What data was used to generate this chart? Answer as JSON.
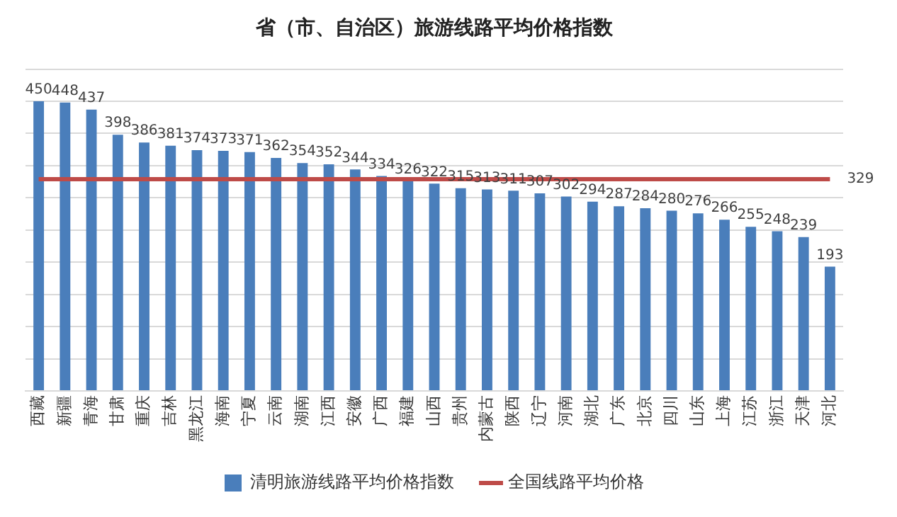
{
  "chart_data": {
    "type": "bar",
    "title": "省（市、自治区）旅游线路平均价格指数",
    "categories": [
      "西藏",
      "新疆",
      "青海",
      "甘肃",
      "重庆",
      "吉林",
      "黑龙江",
      "海南",
      "宁夏",
      "云南",
      "湖南",
      "江西",
      "安徽",
      "广西",
      "福建",
      "山西",
      "贵州",
      "内蒙古",
      "陕西",
      "辽宁",
      "河南",
      "湖北",
      "广东",
      "北京",
      "四川",
      "山东",
      "上海",
      "江苏",
      "浙江",
      "天津",
      "河北"
    ],
    "series": [
      {
        "name": "清明旅游线路平均价格指数",
        "color": "#4a7ebb",
        "values": [
          450,
          448,
          437,
          398,
          386,
          381,
          374,
          373,
          371,
          362,
          354,
          352,
          344,
          334,
          326,
          322,
          315,
          313,
          311,
          307,
          302,
          294,
          287,
          284,
          280,
          276,
          266,
          255,
          248,
          239,
          193
        ],
        "value_labels": [
          "450",
          "448",
          "437",
          "398",
          "386",
          "381",
          "374",
          "373",
          "371",
          "362",
          "354",
          "352",
          "344",
          "334",
          "326",
          "322",
          "315",
          "313",
          "311",
          "307",
          "302",
          "294",
          "287",
          "284",
          "280",
          "276",
          "266",
          "255",
          "248",
          "239",
          "193"
        ]
      },
      {
        "name": "全国线路平均价格",
        "type": "line",
        "color": "#be4b48",
        "values": [
          329,
          329,
          329,
          329,
          329,
          329,
          329,
          329,
          329,
          329,
          329,
          329,
          329,
          329,
          329,
          329,
          329,
          329,
          329,
          329,
          329,
          329,
          329,
          329,
          329,
          329,
          329,
          329,
          329,
          329,
          329
        ],
        "value_labels": [
          null,
          null,
          null,
          null,
          null,
          null,
          null,
          null,
          null,
          null,
          null,
          null,
          null,
          null,
          null,
          null,
          null,
          null,
          null,
          null,
          null,
          null,
          null,
          null,
          null,
          null,
          null,
          null,
          null,
          null,
          "329"
        ]
      }
    ],
    "ylim": [
      0,
      500
    ],
    "yticks": [
      {
        "value": 0,
        "label": null
      },
      {
        "value": 50,
        "label": null
      },
      {
        "value": 100,
        "label": null
      },
      {
        "value": 150,
        "label": null
      },
      {
        "value": 200,
        "label": null
      },
      {
        "value": 250,
        "label": null
      },
      {
        "value": 300,
        "label": null
      },
      {
        "value": 350,
        "label": null
      },
      {
        "value": 400,
        "label": null
      },
      {
        "value": 450,
        "label": null
      },
      {
        "value": 500,
        "label": null
      }
    ],
    "tick_labels": "x",
    "grid": "y",
    "legend": "bottom",
    "marker": "none"
  }
}
